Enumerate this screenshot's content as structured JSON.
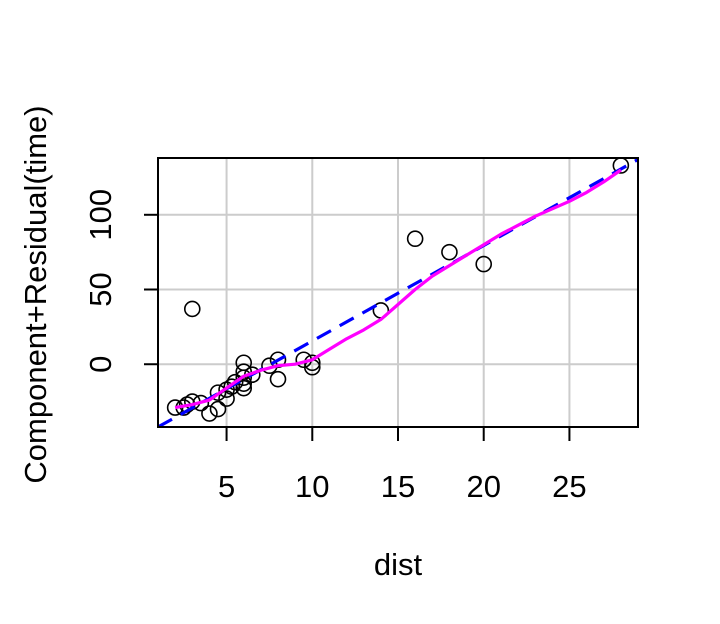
{
  "chart_data": {
    "type": "scatter",
    "xlabel": "dist",
    "ylabel": "Component+Residual(time)",
    "xlim": [
      1.0,
      29.0
    ],
    "ylim": [
      -42,
      138
    ],
    "xticks": [
      5,
      10,
      15,
      20,
      25
    ],
    "yticks": [
      0,
      50,
      100
    ],
    "x_tick_labels": [
      "5",
      "10",
      "15",
      "20",
      "25"
    ],
    "y_tick_labels": [
      "0",
      "50",
      "100"
    ],
    "grid": true,
    "points": [
      {
        "x": 2.0,
        "y": -29
      },
      {
        "x": 2.5,
        "y": -29
      },
      {
        "x": 2.7,
        "y": -27
      },
      {
        "x": 3.0,
        "y": -25
      },
      {
        "x": 3.0,
        "y": 37
      },
      {
        "x": 3.5,
        "y": -26
      },
      {
        "x": 4.0,
        "y": -33
      },
      {
        "x": 4.5,
        "y": -30
      },
      {
        "x": 4.5,
        "y": -19
      },
      {
        "x": 5.0,
        "y": -17
      },
      {
        "x": 5.0,
        "y": -23
      },
      {
        "x": 5.3,
        "y": -15
      },
      {
        "x": 5.5,
        "y": -12
      },
      {
        "x": 6.0,
        "y": -16
      },
      {
        "x": 6.0,
        "y": -13
      },
      {
        "x": 6.0,
        "y": -9
      },
      {
        "x": 6.0,
        "y": -5
      },
      {
        "x": 6.0,
        "y": 1
      },
      {
        "x": 6.5,
        "y": -7
      },
      {
        "x": 7.5,
        "y": -1
      },
      {
        "x": 8.0,
        "y": 3
      },
      {
        "x": 8.0,
        "y": -10
      },
      {
        "x": 9.5,
        "y": 3
      },
      {
        "x": 10.0,
        "y": 1
      },
      {
        "x": 10.0,
        "y": -2
      },
      {
        "x": 14.0,
        "y": 36
      },
      {
        "x": 16.0,
        "y": 84
      },
      {
        "x": 18.0,
        "y": 75
      },
      {
        "x": 20.0,
        "y": 67
      },
      {
        "x": 28.0,
        "y": 133
      }
    ],
    "series": [
      {
        "kind": "linear-fit",
        "style": "dashed",
        "color": "#0000ff",
        "x": [
          1.0,
          29.0
        ],
        "y": [
          -42,
          137
        ]
      },
      {
        "kind": "smooth",
        "style": "solid",
        "color": "#ff00ff",
        "x": [
          2,
          3,
          4,
          5,
          6,
          7,
          8,
          9,
          10,
          11,
          12,
          13,
          14,
          15,
          16,
          17,
          18,
          19,
          20,
          21,
          22,
          23,
          24,
          25,
          26,
          27,
          28
        ],
        "y": [
          -29,
          -27,
          -24,
          -16,
          -8,
          -4,
          -1,
          0,
          3,
          10,
          17,
          23,
          30,
          40,
          50,
          59,
          66,
          73,
          80,
          87,
          93,
          99,
          104,
          109,
          115,
          122,
          130
        ]
      }
    ],
    "point_color": "#000000"
  }
}
